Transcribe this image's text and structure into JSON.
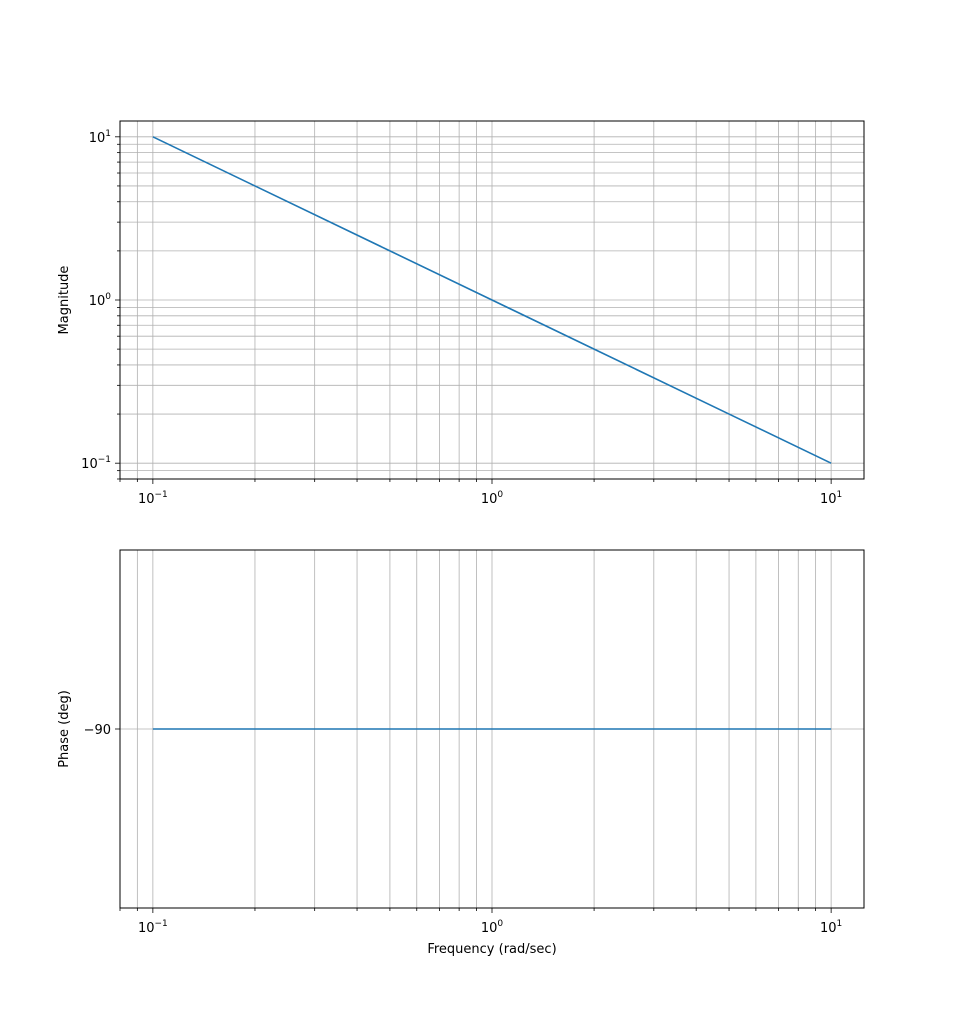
{
  "chart_data": [
    {
      "type": "line",
      "xscale": "log",
      "yscale": "log",
      "xlabel": "",
      "ylabel": "Magnitude",
      "xlim": [
        0.08,
        12.5
      ],
      "ylim": [
        0.08,
        12.5
      ],
      "grid": true,
      "xticks": [
        0.1,
        1,
        10
      ],
      "xtick_labels": [
        "10",
        "10",
        "10"
      ],
      "xtick_exponents": [
        "−1",
        "0",
        "1"
      ],
      "yticks": [
        0.1,
        1,
        10
      ],
      "ytick_labels": [
        "10",
        "10",
        "10"
      ],
      "ytick_exponents": [
        "−1",
        "0",
        "1"
      ],
      "series": [
        {
          "color": "#1f77b4",
          "x": [
            0.1,
            0.2,
            0.5,
            1,
            2,
            5,
            10
          ],
          "y": [
            10,
            5,
            2,
            1,
            0.5,
            0.2,
            0.1
          ]
        }
      ]
    },
    {
      "type": "line",
      "xscale": "log",
      "yscale": "linear",
      "xlabel": "Frequency (rad/sec)",
      "ylabel": "Phase (deg)",
      "xlim": [
        0.08,
        12.5
      ],
      "ylim": [
        -135,
        -45
      ],
      "grid": true,
      "xticks": [
        0.1,
        1,
        10
      ],
      "xtick_labels": [
        "10",
        "10",
        "10"
      ],
      "xtick_exponents": [
        "−1",
        "0",
        "1"
      ],
      "yticks": [
        -90
      ],
      "ytick_labels": [
        "−90"
      ],
      "series": [
        {
          "color": "#1f77b4",
          "x": [
            0.1,
            1,
            10
          ],
          "y": [
            -90,
            -90,
            -90
          ]
        }
      ]
    }
  ]
}
